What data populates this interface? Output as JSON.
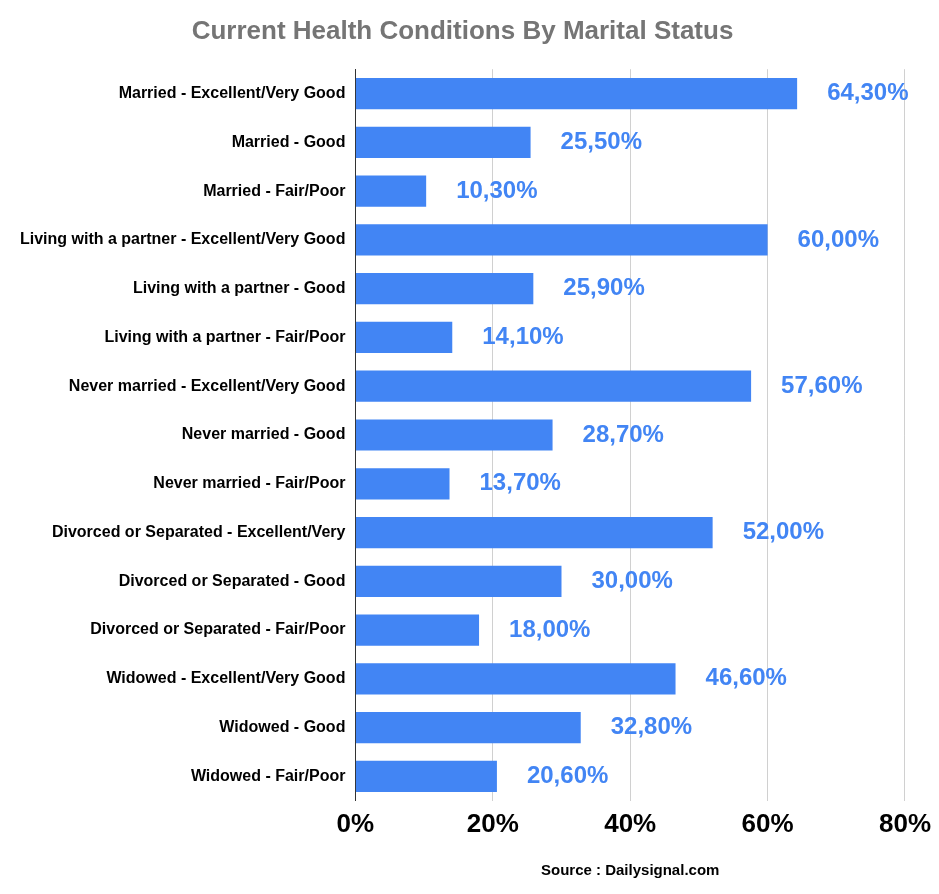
{
  "chart_data": {
    "type": "bar",
    "orientation": "horizontal",
    "title": "Current Health Conditions By Marital Status",
    "x_label": "Source : Dailysignal.com",
    "categories": [
      "Married - Excellent/Very Good",
      "Married - Good",
      "Married - Fair/Poor",
      "Living with a partner - Excellent/Very Good",
      "Living with a partner - Good",
      "Living with a partner - Fair/Poor",
      "Never married - Excellent/Very Good",
      "Never married - Good",
      "Never married - Fair/Poor",
      "Divorced or Separated - Excellent/Very",
      "Divorced or Separated - Good",
      "Divorced or Separated - Fair/Poor",
      "Widowed - Excellent/Very Good",
      "Widowed - Good",
      "Widowed - Fair/Poor"
    ],
    "values": [
      64.3,
      25.5,
      10.3,
      60.0,
      25.9,
      14.1,
      57.6,
      28.7,
      13.7,
      52.0,
      30.0,
      18.0,
      46.6,
      32.8,
      20.6
    ],
    "value_labels": [
      "64,30%",
      "25,50%",
      "10,30%",
      "60,00%",
      "25,90%",
      "14,10%",
      "57,60%",
      "28,70%",
      "13,70%",
      "52,00%",
      "30,00%",
      "18,00%",
      "46,60%",
      "32,80%",
      "20,60%"
    ],
    "color": "#4285f4",
    "data_labels": true,
    "grid": true,
    "xlim": [
      0,
      80
    ],
    "xticks": [
      {
        "value": 0,
        "label": "0%"
      },
      {
        "value": 20,
        "label": "20%"
      },
      {
        "value": 40,
        "label": "40%"
      },
      {
        "value": 60,
        "label": "60%"
      },
      {
        "value": 80,
        "label": "80%"
      }
    ]
  }
}
